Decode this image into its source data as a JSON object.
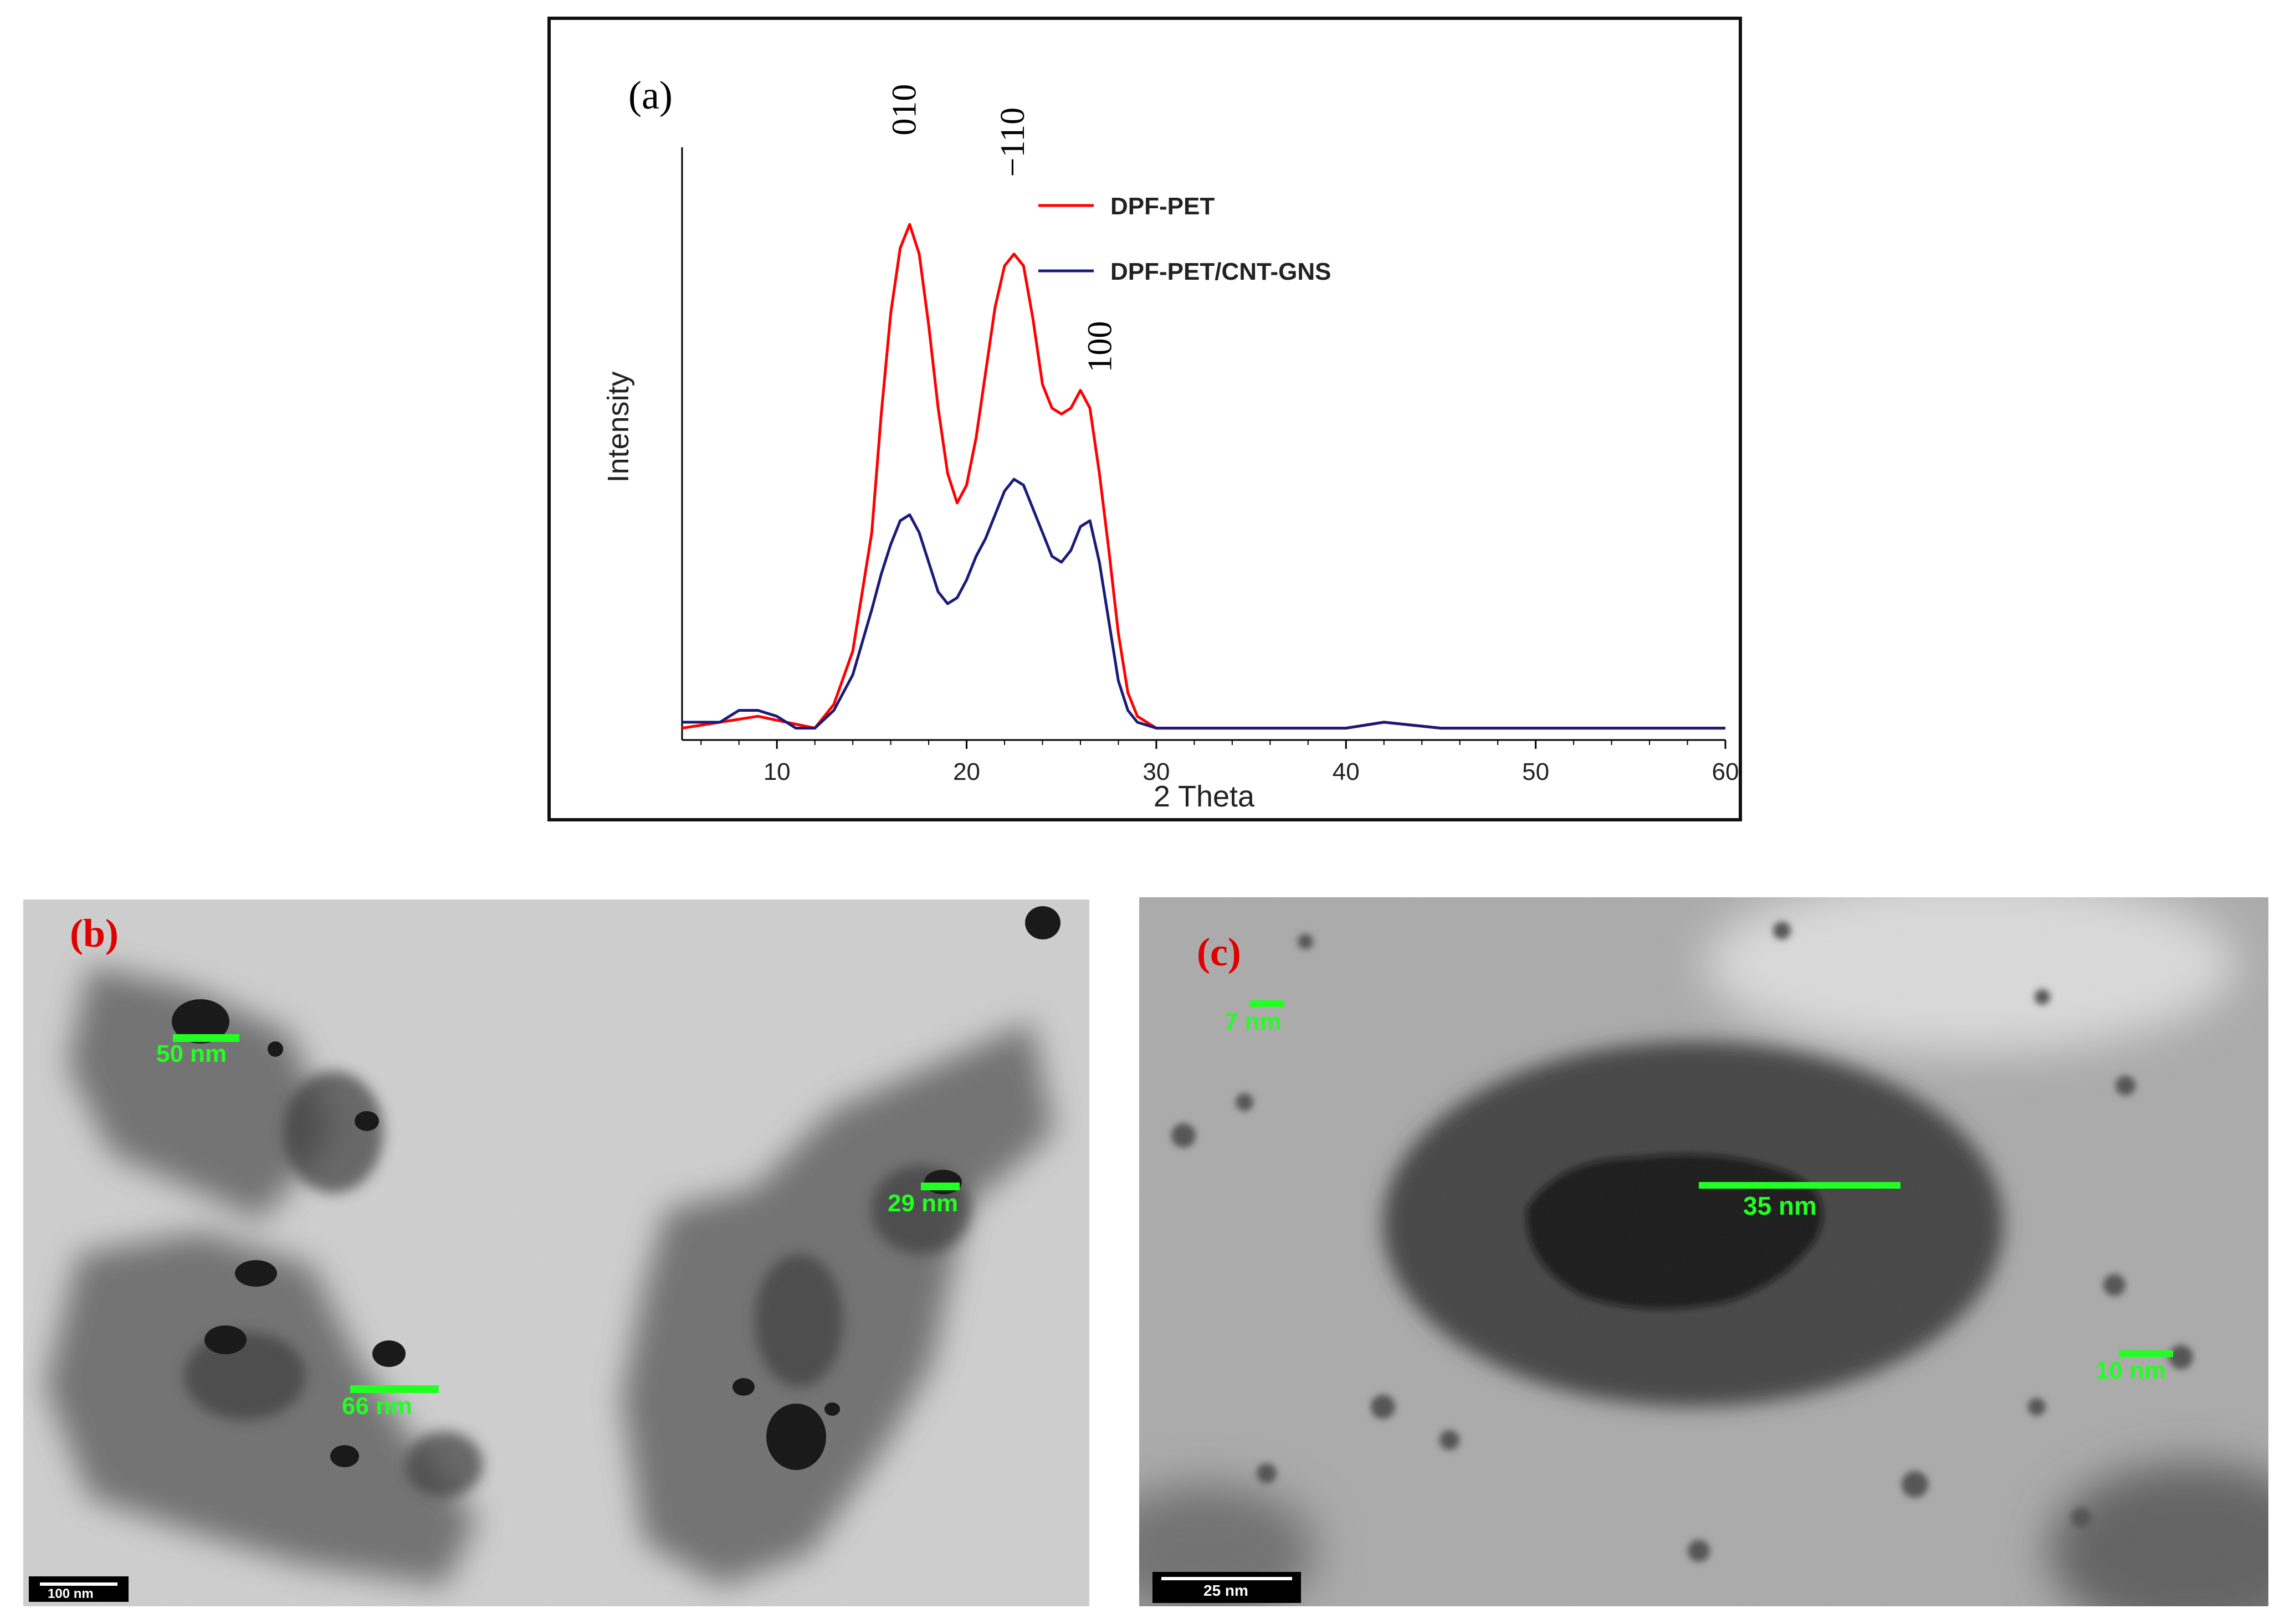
{
  "panel_a": {
    "label": "(a)",
    "chart_data": {
      "type": "line",
      "xlabel": "2 Theta",
      "ylabel": "Intensity",
      "xlim": [
        5,
        60
      ],
      "ylim": [
        0,
        100
      ],
      "x_ticks": [
        10,
        20,
        30,
        40,
        50,
        60
      ],
      "y_ticks": [],
      "grid": false,
      "legend_position": "top-center",
      "series": [
        {
          "name": "DPF-PET",
          "color": "#ff0000",
          "x": [
            5,
            7,
            9,
            10.5,
            12,
            13,
            14,
            15,
            15.5,
            16,
            16.5,
            17,
            17.5,
            18,
            18.5,
            19,
            19.5,
            20,
            20.5,
            21,
            21.5,
            22,
            22.5,
            23,
            23.5,
            24,
            24.5,
            25,
            25.5,
            26,
            26.5,
            27,
            27.5,
            28,
            28.5,
            29,
            30,
            35,
            40,
            42,
            45,
            50,
            55,
            60
          ],
          "y": [
            2,
            3,
            4,
            3,
            2,
            6,
            15,
            35,
            55,
            72,
            83,
            87,
            82,
            70,
            56,
            45,
            40,
            43,
            51,
            62,
            73,
            80,
            82,
            80,
            71,
            60,
            56,
            55,
            56,
            59,
            56,
            45,
            32,
            18,
            8,
            4,
            2,
            2,
            2,
            3,
            2,
            2,
            2,
            2
          ]
        },
        {
          "name": "DPF-PET/CNT-GNS",
          "color": "#1a1a7a",
          "x": [
            5,
            7,
            8,
            9,
            10,
            11,
            12,
            13,
            14,
            15,
            15.5,
            16,
            16.5,
            17,
            17.5,
            18,
            18.5,
            19,
            19.5,
            20,
            20.5,
            21,
            21.5,
            22,
            22.5,
            23,
            23.5,
            24,
            24.5,
            25,
            25.5,
            26,
            26.5,
            27,
            27.5,
            28,
            28.5,
            29,
            30,
            35,
            40,
            42,
            45,
            50,
            55,
            60
          ],
          "y": [
            3,
            3,
            5,
            5,
            4,
            2,
            2,
            5,
            11,
            22,
            28,
            33,
            37,
            38,
            35,
            30,
            25,
            23,
            24,
            27,
            31,
            34,
            38,
            42,
            44,
            43,
            39,
            35,
            31,
            30,
            32,
            36,
            37,
            30,
            20,
            10,
            5,
            3,
            2,
            2,
            2,
            3,
            2,
            2,
            2,
            2
          ]
        }
      ],
      "annotations": [
        {
          "text": "010",
          "x": 16.9,
          "y": 102
        },
        {
          "text": "−110",
          "x": 22.6,
          "y": 95
        },
        {
          "text": "100",
          "x": 27.2,
          "y": 62
        }
      ]
    }
  },
  "panel_b": {
    "label": "(b)",
    "scale_bar": "100 nm",
    "measurements": [
      "50 nm",
      "29 nm",
      "66 nm"
    ],
    "colors": {
      "label": "#e00000",
      "measure": "#22ff22"
    }
  },
  "panel_c": {
    "label": "(c)",
    "scale_bar": "25 nm",
    "measurements": [
      "7 nm",
      "35 nm",
      "10 nm"
    ],
    "colors": {
      "label": "#e00000",
      "measure": "#22ff22"
    }
  }
}
